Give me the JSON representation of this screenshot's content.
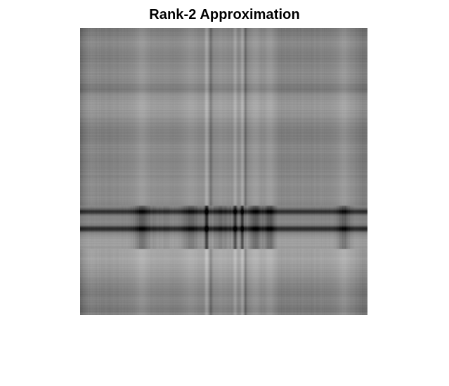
{
  "figure": {
    "title": "Rank-2 Approximation",
    "colormap": "gray"
  },
  "image": {
    "description_kind": "grayscale image (rank-2 approximation)",
    "row_profile": {
      "base_level": 0.55,
      "bands": [
        {
          "at": 0.0,
          "width": 0.03,
          "delta": -0.1
        },
        {
          "at": 0.1,
          "width": 0.03,
          "delta": -0.06
        },
        {
          "at": 0.21,
          "width": 0.02,
          "delta": -0.1
        },
        {
          "at": 0.27,
          "width": 0.05,
          "delta": 0.06
        },
        {
          "at": 0.37,
          "width": 0.04,
          "delta": -0.06
        },
        {
          "at": 0.47,
          "width": 0.03,
          "delta": -0.05
        },
        {
          "at": 0.64,
          "width": 0.01,
          "delta": -0.45
        },
        {
          "at": 0.7,
          "width": 0.01,
          "delta": -0.5
        },
        {
          "at": 0.74,
          "width": 0.02,
          "delta": 0.05
        },
        {
          "at": 0.8,
          "width": 0.06,
          "delta": 0.12
        },
        {
          "at": 0.92,
          "width": 0.03,
          "delta": -0.08
        },
        {
          "at": 0.98,
          "width": 0.02,
          "delta": -0.1
        }
      ]
    },
    "col_profile": {
      "bands": [
        {
          "at": 0.0,
          "width": 0.02,
          "delta": -0.2
        },
        {
          "at": 0.1,
          "width": 0.04,
          "delta": -0.04
        },
        {
          "at": 0.215,
          "width": 0.025,
          "delta": 0.25
        },
        {
          "at": 0.29,
          "width": 0.04,
          "delta": 0.05
        },
        {
          "at": 0.385,
          "width": 0.03,
          "delta": 0.2
        },
        {
          "at": 0.44,
          "width": 0.006,
          "delta": 0.55
        },
        {
          "at": 0.455,
          "width": 0.006,
          "delta": -0.3
        },
        {
          "at": 0.49,
          "width": 0.04,
          "delta": 0.15
        },
        {
          "at": 0.54,
          "width": 0.006,
          "delta": 0.45
        },
        {
          "at": 0.565,
          "width": 0.006,
          "delta": 0.5
        },
        {
          "at": 0.575,
          "width": 0.005,
          "delta": -0.3
        },
        {
          "at": 0.61,
          "width": 0.02,
          "delta": 0.3
        },
        {
          "at": 0.66,
          "width": 0.02,
          "delta": 0.3
        },
        {
          "at": 0.72,
          "width": 0.05,
          "delta": -0.05
        },
        {
          "at": 0.8,
          "width": 0.05,
          "delta": -0.02
        },
        {
          "at": 0.92,
          "width": 0.02,
          "delta": 0.25
        },
        {
          "at": 0.99,
          "width": 0.02,
          "delta": -0.15
        }
      ]
    },
    "interaction": {
      "dark_rows_from": 0.62,
      "dark_rows_to": 0.77,
      "strength": 0.9
    }
  }
}
